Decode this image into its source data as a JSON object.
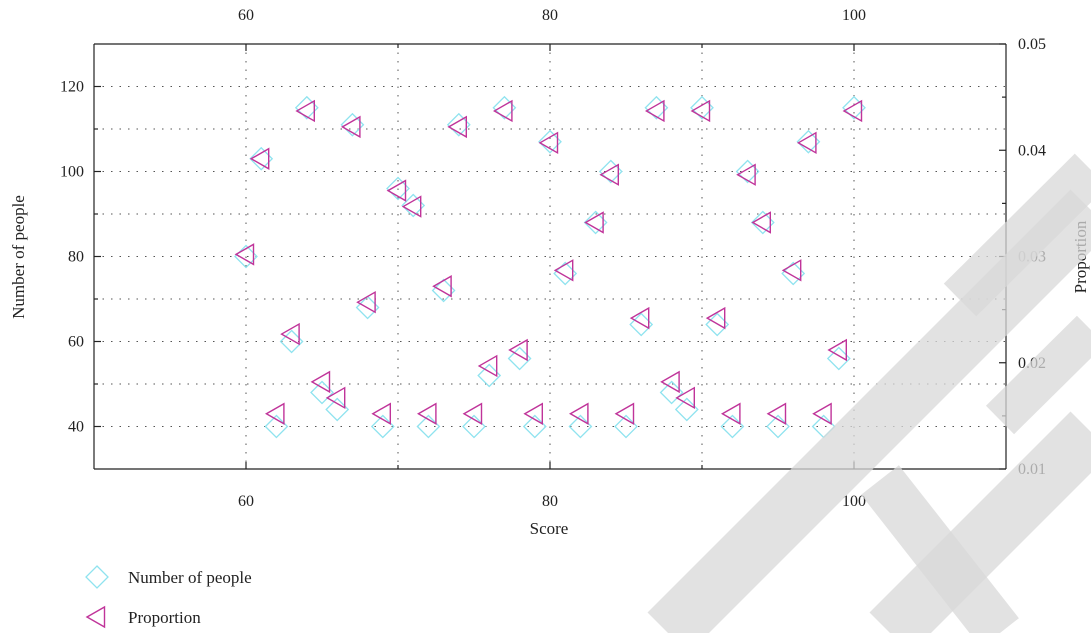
{
  "chart_data": {
    "type": "scatter",
    "xlabel": "Score",
    "ylabel_left": "Number of people",
    "ylabel_right": "Proportion",
    "xlim": [
      50,
      110
    ],
    "ylim_left": [
      30,
      130
    ],
    "ylim_right": [
      0.01,
      0.05
    ],
    "x_ticks": [
      60,
      80,
      100
    ],
    "y_ticks_left": [
      40,
      60,
      80,
      100,
      120
    ],
    "y_ticks_right": [
      0.01,
      0.02,
      0.03,
      0.04,
      0.05
    ],
    "grid": true,
    "legend_position": "bottom-left",
    "series": [
      {
        "name": "Number of people",
        "marker": "diamond",
        "color": "#8fe3ef",
        "axis": "left",
        "points": [
          [
            60,
            80
          ],
          [
            61,
            103
          ],
          [
            62,
            40
          ],
          [
            63,
            60
          ],
          [
            64,
            115
          ],
          [
            65,
            48
          ],
          [
            66,
            44
          ],
          [
            67,
            111
          ],
          [
            68,
            68
          ],
          [
            69,
            40
          ],
          [
            70,
            96
          ],
          [
            71,
            92
          ],
          [
            72,
            40
          ],
          [
            73,
            72
          ],
          [
            74,
            111
          ],
          [
            75,
            40
          ],
          [
            76,
            52
          ],
          [
            77,
            115
          ],
          [
            78,
            56
          ],
          [
            79,
            40
          ],
          [
            80,
            107
          ],
          [
            81,
            76
          ],
          [
            82,
            40
          ],
          [
            83,
            88
          ],
          [
            84,
            100
          ],
          [
            85,
            40
          ],
          [
            86,
            64
          ],
          [
            87,
            115
          ],
          [
            88,
            48
          ],
          [
            89,
            44
          ],
          [
            90,
            115
          ],
          [
            91,
            64
          ],
          [
            92,
            40
          ],
          [
            93,
            100
          ],
          [
            94,
            88
          ],
          [
            95,
            40
          ],
          [
            96,
            76
          ],
          [
            97,
            107
          ],
          [
            98,
            40
          ],
          [
            99,
            56
          ],
          [
            100,
            115
          ]
        ]
      },
      {
        "name": "Proportion",
        "marker": "triangle-left",
        "color": "#c0349a",
        "axis": "right",
        "points": [
          [
            60,
            0.0302
          ],
          [
            61,
            0.0392
          ],
          [
            62,
            0.0152
          ],
          [
            63,
            0.0227
          ],
          [
            64,
            0.0437
          ],
          [
            65,
            0.0182
          ],
          [
            66,
            0.0167
          ],
          [
            67,
            0.0422
          ],
          [
            68,
            0.0257
          ],
          [
            69,
            0.0152
          ],
          [
            70,
            0.0362
          ],
          [
            71,
            0.0347
          ],
          [
            72,
            0.0152
          ],
          [
            73,
            0.0272
          ],
          [
            74,
            0.0422
          ],
          [
            75,
            0.0152
          ],
          [
            76,
            0.0197
          ],
          [
            77,
            0.0437
          ],
          [
            78,
            0.0212
          ],
          [
            79,
            0.0152
          ],
          [
            80,
            0.0407
          ],
          [
            81,
            0.0287
          ],
          [
            82,
            0.0152
          ],
          [
            83,
            0.0332
          ],
          [
            84,
            0.0377
          ],
          [
            85,
            0.0152
          ],
          [
            86,
            0.0242
          ],
          [
            87,
            0.0437
          ],
          [
            88,
            0.0182
          ],
          [
            89,
            0.0167
          ],
          [
            90,
            0.0437
          ],
          [
            91,
            0.0242
          ],
          [
            92,
            0.0152
          ],
          [
            93,
            0.0377
          ],
          [
            94,
            0.0332
          ],
          [
            95,
            0.0152
          ],
          [
            96,
            0.0287
          ],
          [
            97,
            0.0407
          ],
          [
            98,
            0.0152
          ],
          [
            99,
            0.0212
          ],
          [
            100,
            0.0437
          ]
        ]
      }
    ]
  },
  "colors": {
    "diamond": "#8fe3ef",
    "triangle": "#c0349a",
    "axis": "#222222",
    "grid": "#555555",
    "watermark": "#d9d9d9"
  },
  "watermark": {
    "text": "CTE"
  }
}
